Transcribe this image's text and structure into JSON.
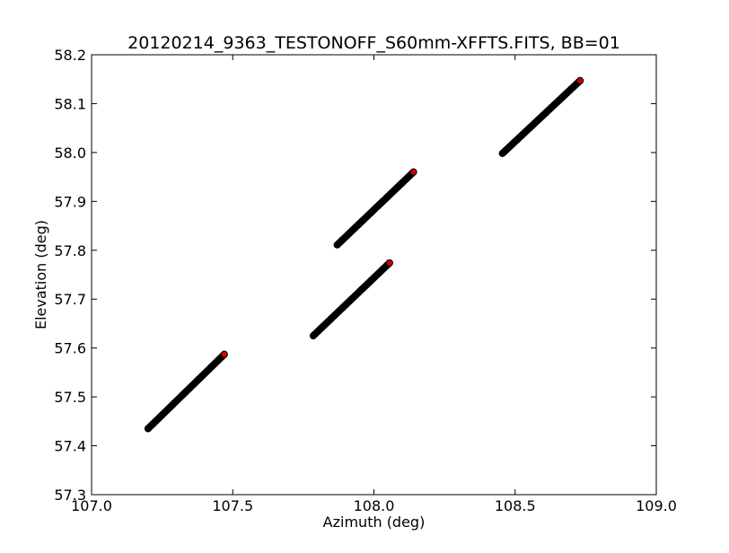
{
  "chart_data": {
    "type": "scatter",
    "title": "20120214_9363_TESTONOFF_S60mm-XFFTS.FITS, BB=01",
    "xlabel": "Azimuth (deg)",
    "ylabel": "Elevation (deg)",
    "xlim": [
      107.0,
      109.0
    ],
    "ylim": [
      57.3,
      58.2
    ],
    "x_ticks": [
      "107.0",
      "107.5",
      "108.0",
      "108.5",
      "109.0"
    ],
    "y_ticks": [
      "57.3",
      "57.4",
      "57.5",
      "57.6",
      "57.7",
      "57.8",
      "57.9",
      "58.0",
      "58.1",
      "58.2"
    ],
    "grid": false,
    "legend": "none",
    "marker_color": "#000000",
    "endpoint_color": "#cc0000",
    "segments": [
      {
        "x_start": 107.2,
        "y_start": 57.435,
        "x_end": 107.47,
        "y_end": 57.587
      },
      {
        "x_start": 107.785,
        "y_start": 57.625,
        "x_end": 108.055,
        "y_end": 57.774
      },
      {
        "x_start": 107.87,
        "y_start": 57.811,
        "x_end": 108.14,
        "y_end": 57.96
      },
      {
        "x_start": 108.455,
        "y_start": 57.998,
        "x_end": 108.73,
        "y_end": 58.147
      }
    ]
  }
}
